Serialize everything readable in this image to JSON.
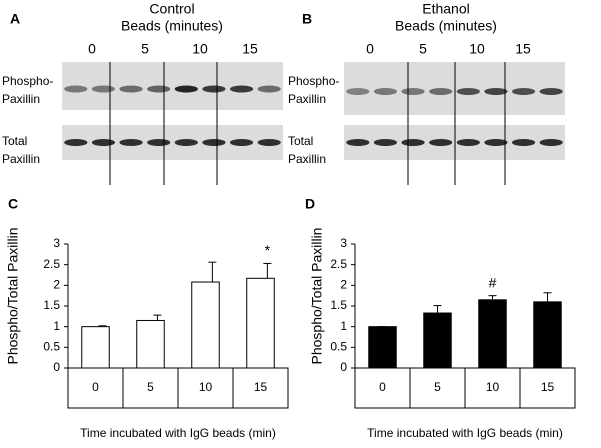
{
  "blots": [
    {
      "letter": "A",
      "title_lines": [
        "Control",
        "Beads (minutes)"
      ],
      "timepoints": [
        "0",
        "5",
        "10",
        "15"
      ],
      "rows": [
        [
          "Phospho-",
          "Paxillin"
        ],
        [
          "Total",
          "Paxillin"
        ]
      ]
    },
    {
      "letter": "B",
      "title_lines": [
        "Ethanol",
        "Beads (minutes)"
      ],
      "timepoints": [
        "0",
        "5",
        "10",
        "15"
      ],
      "rows": [
        [
          "Phospho-",
          "Paxillin"
        ],
        [
          "Total",
          "Paxillin"
        ]
      ]
    }
  ],
  "chart_data": [
    {
      "type": "bar",
      "letter": "C",
      "categories": [
        "0",
        "5",
        "10",
        "15"
      ],
      "values": [
        1,
        1.15,
        2.08,
        2.17
      ],
      "errors": [
        0.02,
        0.13,
        0.48,
        0.36
      ],
      "annotations": [
        null,
        null,
        null,
        "*"
      ],
      "color": "#ffffff",
      "ylim": [
        0,
        3
      ],
      "yticks": [
        0,
        0.5,
        1,
        1.5,
        2,
        2.5,
        3
      ],
      "y_label": "Phospho/Total Paxillin",
      "x_label": "Time incubated with IgG beads (min)"
    },
    {
      "type": "bar",
      "letter": "D",
      "categories": [
        "0",
        "5",
        "10",
        "15"
      ],
      "values": [
        1,
        1.33,
        1.65,
        1.6
      ],
      "errors": [
        0,
        0.18,
        0.1,
        0.22
      ],
      "annotations": [
        null,
        null,
        "#",
        null
      ],
      "color": "#000000",
      "ylim": [
        0,
        3
      ],
      "yticks": [
        0,
        0.5,
        1,
        1.5,
        2,
        2.5,
        3
      ],
      "y_label": "Phospho/Total Paxillin",
      "x_label": "Time incubated with IgG beads (min)"
    }
  ]
}
